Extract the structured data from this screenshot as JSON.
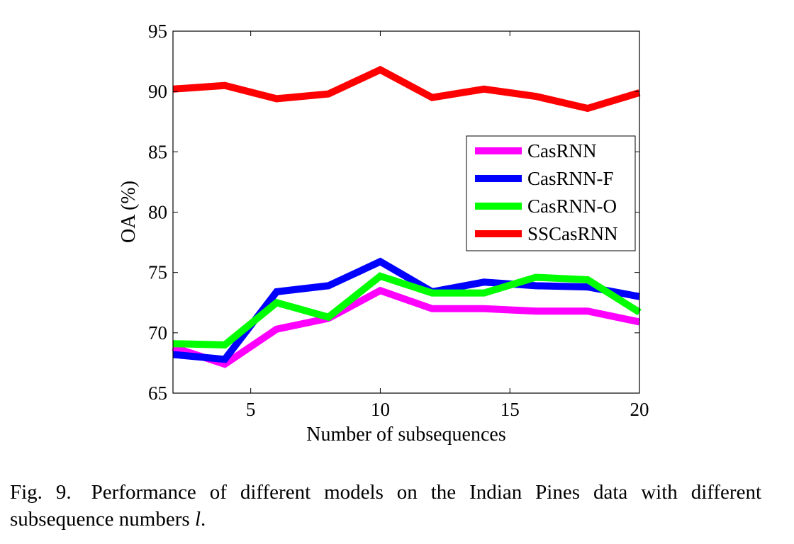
{
  "chart_data": {
    "type": "line",
    "title": "",
    "xlabel": "Number of subsequences",
    "ylabel": "OA (%)",
    "xlim": [
      2,
      20
    ],
    "ylim": [
      65,
      95
    ],
    "xticks": [
      5,
      10,
      15,
      20
    ],
    "yticks": [
      65,
      70,
      75,
      80,
      85,
      90,
      95
    ],
    "grid": false,
    "legend_position": "right",
    "x": [
      2,
      4,
      6,
      8,
      10,
      12,
      14,
      16,
      18,
      20
    ],
    "series": [
      {
        "name": "CasRNN",
        "color": "#ff00ff",
        "values": [
          68.8,
          67.4,
          70.3,
          71.2,
          73.5,
          72.0,
          72.0,
          71.8,
          71.8,
          70.9
        ]
      },
      {
        "name": "CasRNN-F",
        "color": "#0000ff",
        "values": [
          68.2,
          67.8,
          73.4,
          73.9,
          75.9,
          73.4,
          74.2,
          73.9,
          73.8,
          73.0
        ]
      },
      {
        "name": "CasRNN-O",
        "color": "#00ff00",
        "values": [
          69.1,
          69.0,
          72.5,
          71.3,
          74.7,
          73.3,
          73.3,
          74.6,
          74.4,
          71.7
        ]
      },
      {
        "name": "SSCasRNN",
        "color": "#ff0000",
        "values": [
          90.2,
          90.5,
          89.4,
          89.8,
          91.8,
          89.5,
          90.2,
          89.6,
          88.6,
          89.9
        ]
      }
    ]
  },
  "caption": {
    "label": "Fig. 9.",
    "text": "Performance of different models on the Indian Pines data with different subsequence numbers",
    "var": "l",
    "end": "."
  }
}
